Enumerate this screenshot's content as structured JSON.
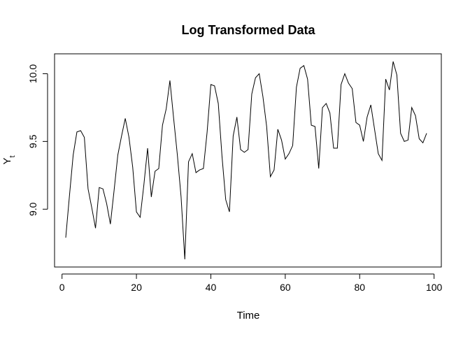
{
  "chart_data": {
    "type": "line",
    "title": "Log Transformed Data",
    "xlabel": "Time",
    "ylabel": "Y",
    "ylabel_subscript": "t",
    "xlim": [
      1,
      98
    ],
    "ylim": [
      8.63,
      10.09
    ],
    "x_ticks": [
      0,
      20,
      40,
      60,
      80,
      100
    ],
    "y_ticks": [
      9.0,
      9.5,
      10.0
    ],
    "x_tick_labels": [
      "0",
      "20",
      "40",
      "60",
      "80",
      "100"
    ],
    "y_tick_labels": [
      "9.0",
      "9.5",
      "10.0"
    ],
    "grid": false,
    "legend": "none",
    "line_color": "#000000",
    "series": [
      {
        "x": [
          1,
          2,
          3,
          4,
          5,
          6,
          7,
          8,
          9,
          10,
          11,
          12,
          13,
          14,
          15,
          16,
          17,
          18,
          19,
          20,
          21,
          22,
          23,
          24,
          25,
          26,
          27,
          28,
          29,
          30,
          31,
          32,
          33,
          34,
          35,
          36,
          37,
          38,
          39,
          40,
          41,
          42,
          43,
          44,
          45,
          46,
          47,
          48,
          49,
          50,
          51,
          52,
          53,
          54,
          55,
          56,
          57,
          58,
          59,
          60,
          61,
          62,
          63,
          64,
          65,
          66,
          67,
          68,
          69,
          70,
          71,
          72,
          73,
          74,
          75,
          76,
          77,
          78,
          79,
          80,
          81,
          82,
          83,
          84,
          85,
          86,
          87,
          88,
          89,
          90,
          91,
          92,
          93,
          94,
          95,
          96,
          97,
          98
        ],
        "values": [
          8.79,
          9.1,
          9.4,
          9.57,
          9.58,
          9.53,
          9.15,
          9.01,
          8.86,
          9.16,
          9.15,
          9.04,
          8.89,
          9.14,
          9.4,
          9.54,
          9.67,
          9.53,
          9.31,
          8.98,
          8.94,
          9.18,
          9.45,
          9.09,
          9.28,
          9.3,
          9.62,
          9.74,
          9.95,
          9.67,
          9.4,
          9.09,
          8.63,
          9.35,
          9.41,
          9.27,
          9.29,
          9.3,
          9.57,
          9.92,
          9.91,
          9.78,
          9.39,
          9.07,
          8.98,
          9.54,
          9.68,
          9.44,
          9.42,
          9.44,
          9.85,
          9.97,
          10.0,
          9.83,
          9.61,
          9.24,
          9.29,
          9.59,
          9.51,
          9.37,
          9.41,
          9.47,
          9.9,
          10.04,
          10.06,
          9.96,
          9.62,
          9.61,
          9.3,
          9.75,
          9.78,
          9.71,
          9.45,
          9.45,
          9.92,
          10.0,
          9.93,
          9.89,
          9.64,
          9.62,
          9.5,
          9.68,
          9.77,
          9.59,
          9.41,
          9.36,
          9.96,
          9.88,
          10.09,
          9.99,
          9.56,
          9.5,
          9.51,
          9.75,
          9.69,
          9.52,
          9.49,
          9.56
        ]
      }
    ]
  }
}
